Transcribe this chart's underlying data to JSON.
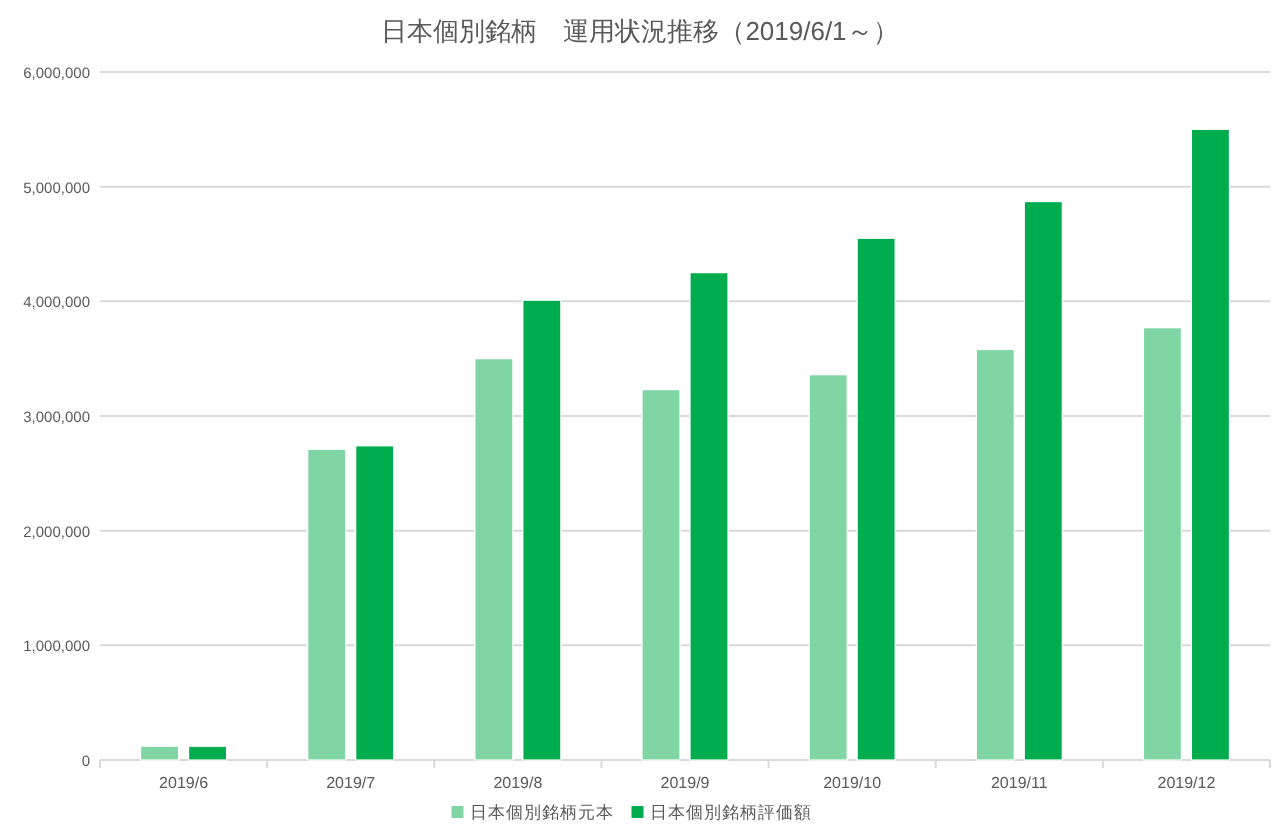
{
  "chart_data": {
    "type": "bar",
    "title": "日本個別銘柄　運用状況推移（2019/6/1～）",
    "categories": [
      "2019/6",
      "2019/7",
      "2019/8",
      "2019/9",
      "2019/10",
      "2019/11",
      "2019/12"
    ],
    "series": [
      {
        "name": "日本個別銘柄元本",
        "color": "#80d5a5",
        "values": [
          120000,
          2710000,
          3500000,
          3230000,
          3360000,
          3580000,
          3770000
        ]
      },
      {
        "name": "日本個別銘柄評価額",
        "color": "#00ad4e",
        "values": [
          120000,
          2740000,
          4010000,
          4250000,
          4550000,
          4870000,
          5500000
        ]
      }
    ],
    "ylim": [
      0,
      6000000
    ],
    "yticks": [
      0,
      {
        "value": 1000000,
        "label": "1,000,000"
      },
      {
        "value": 2000000,
        "label": "2,000,000"
      },
      {
        "value": 3000000,
        "label": "3,000,000"
      },
      {
        "value": 4000000,
        "label": "4,000,000"
      },
      {
        "value": 5000000,
        "label": "5,000,000"
      },
      {
        "value": 6000000,
        "label": "6,000,000"
      }
    ],
    "grid": "y",
    "legend": "bottom"
  }
}
